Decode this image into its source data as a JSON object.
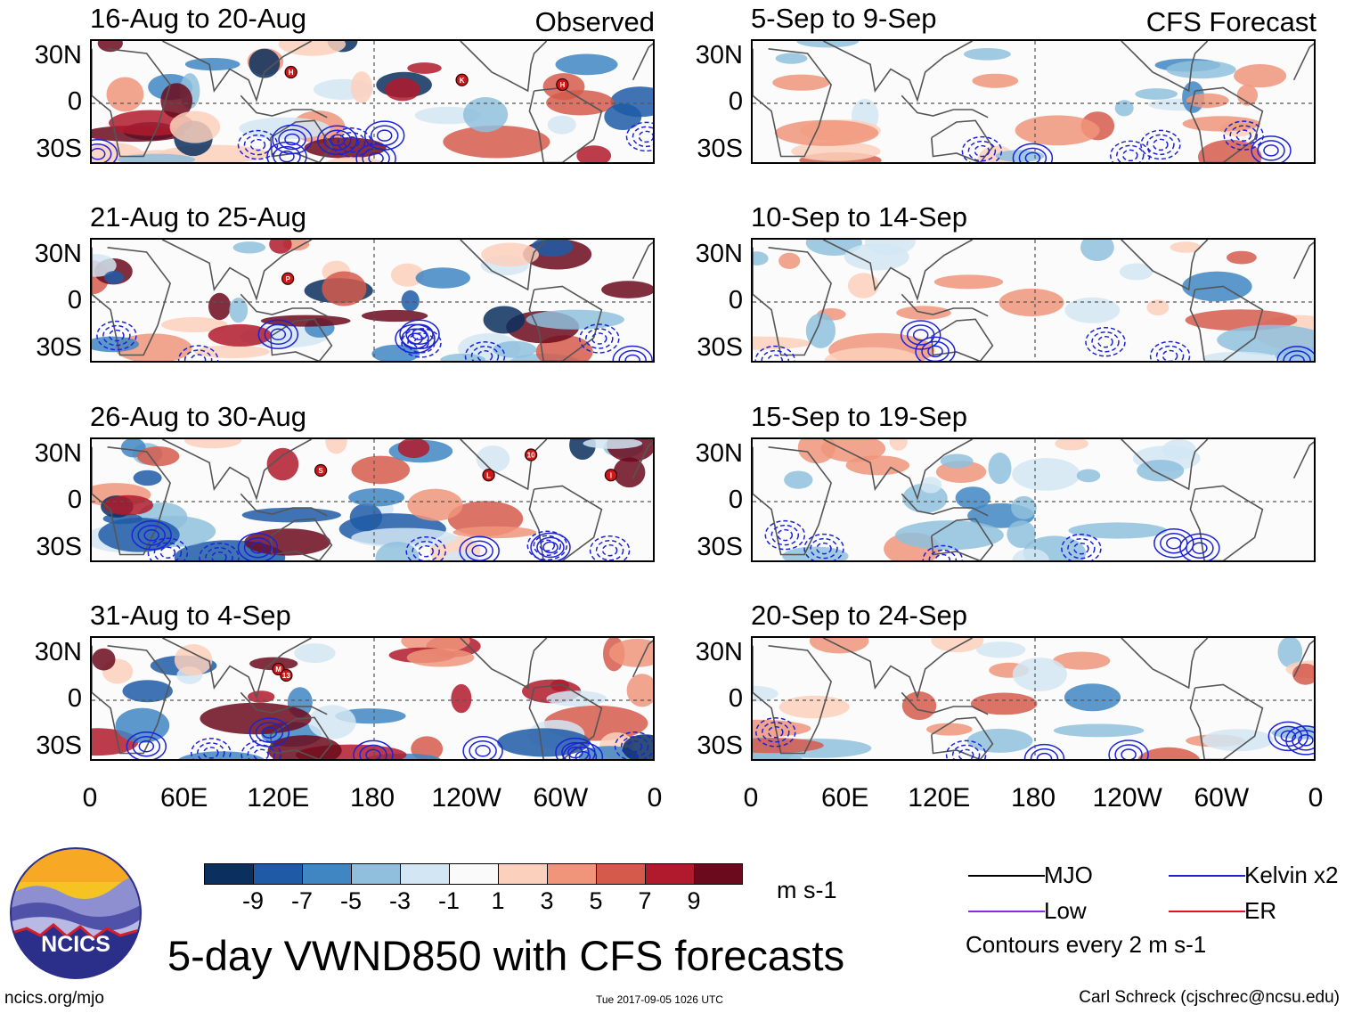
{
  "chart_data": {
    "type": "heatmap",
    "title": "5-day VWND850 with CFS forecasts",
    "variable": "850 hPa meridional wind anomaly",
    "units": "m s-1",
    "columns": [
      {
        "label": "Observed",
        "panels": [
          "16-Aug to 20-Aug",
          "21-Aug to 25-Aug",
          "26-Aug to 30-Aug",
          "31-Aug to 4-Sep"
        ]
      },
      {
        "label": "CFS Forecast",
        "panels": [
          "5-Sep to 9-Sep",
          "10-Sep to 14-Sep",
          "15-Sep to 19-Sep",
          "20-Sep to 24-Sep"
        ]
      }
    ],
    "x_ticks": [
      "0",
      "60E",
      "120E",
      "180",
      "120W",
      "60W",
      "0"
    ],
    "y_ticks": [
      "30N",
      "0",
      "30S"
    ],
    "lon_range": [
      0,
      360
    ],
    "lat_range": [
      -40,
      40
    ],
    "colorbar": {
      "ticks": [
        "-9",
        "-7",
        "-5",
        "-3",
        "-1",
        "1",
        "3",
        "5",
        "7",
        "9"
      ],
      "colors": [
        "#0b2f5e",
        "#1f5aa6",
        "#3f86c2",
        "#8fbfdd",
        "#d2e6f3",
        "#fafafa",
        "#fbd0bc",
        "#f0957a",
        "#d55a4c",
        "#b01a2c",
        "#6b0a1c"
      ],
      "units": "m s-1"
    },
    "legend": [
      {
        "label": "MJO",
        "color": "#000000"
      },
      {
        "label": "Kelvin x2",
        "color": "#1c22d8"
      },
      {
        "label": "Low",
        "color": "#8a2be2"
      },
      {
        "label": "ER",
        "color": "#e0141e"
      }
    ],
    "contour_note": "Contours every 2 m s-1",
    "storms": [
      {
        "panel": 0,
        "label": "H",
        "lon": 127,
        "lat": 20
      },
      {
        "panel": 0,
        "label": "K",
        "lon": 236,
        "lat": 15
      },
      {
        "panel": 0,
        "label": "H",
        "lon": 300,
        "lat": 12
      },
      {
        "panel": 1,
        "label": "P",
        "lon": 125,
        "lat": 15
      },
      {
        "panel": 2,
        "label": "S",
        "lon": 146,
        "lat": 20
      },
      {
        "panel": 2,
        "label": "L",
        "lon": 253,
        "lat": 17
      },
      {
        "panel": 2,
        "label": "10",
        "lon": 280,
        "lat": 30
      },
      {
        "panel": 2,
        "label": "I",
        "lon": 331,
        "lat": 17
      },
      {
        "panel": 3,
        "label": "M",
        "lon": 119,
        "lat": 20
      },
      {
        "panel": 3,
        "label": "13",
        "lon": 124,
        "lat": 16
      }
    ]
  },
  "footer": {
    "logo_text": "NCICS",
    "url": "ncics.org/mjo",
    "timestamp": "Tue 2017-09-05 1026 UTC",
    "author": "Carl Schreck (cjschrec@ncsu.edu)"
  }
}
